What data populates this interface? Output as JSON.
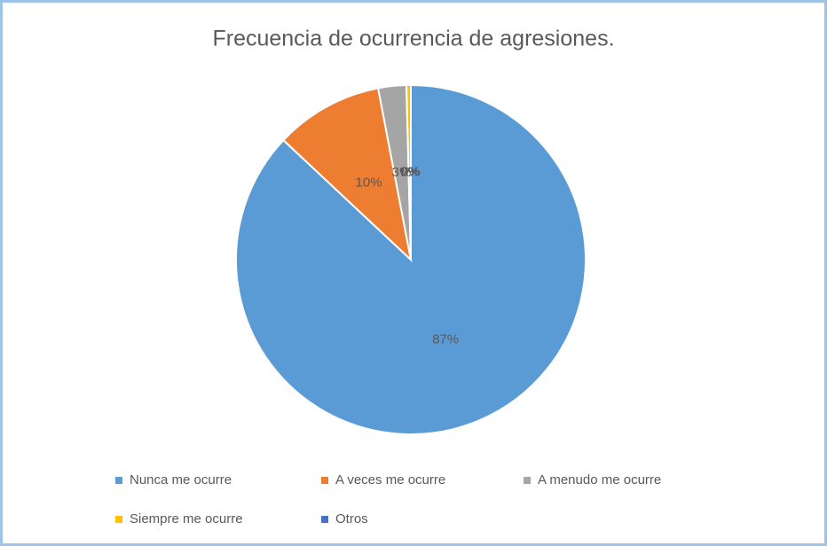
{
  "chart_data": {
    "type": "pie",
    "title": "Frecuencia de ocurrencia de agresiones.",
    "categories": [
      "Nunca me ocurre",
      "A veces me ocurre",
      "A menudo me ocurre",
      "Siempre me ocurre",
      "Otros"
    ],
    "values": [
      87,
      10,
      2.6,
      0.4,
      0
    ],
    "value_labels": [
      "87%",
      "10%",
      "3%",
      "0%",
      "0%"
    ],
    "colors": [
      "#5b9bd5",
      "#ed7d31",
      "#a5a5a5",
      "#ffc000",
      "#4472c4"
    ],
    "legend": "bottom"
  }
}
